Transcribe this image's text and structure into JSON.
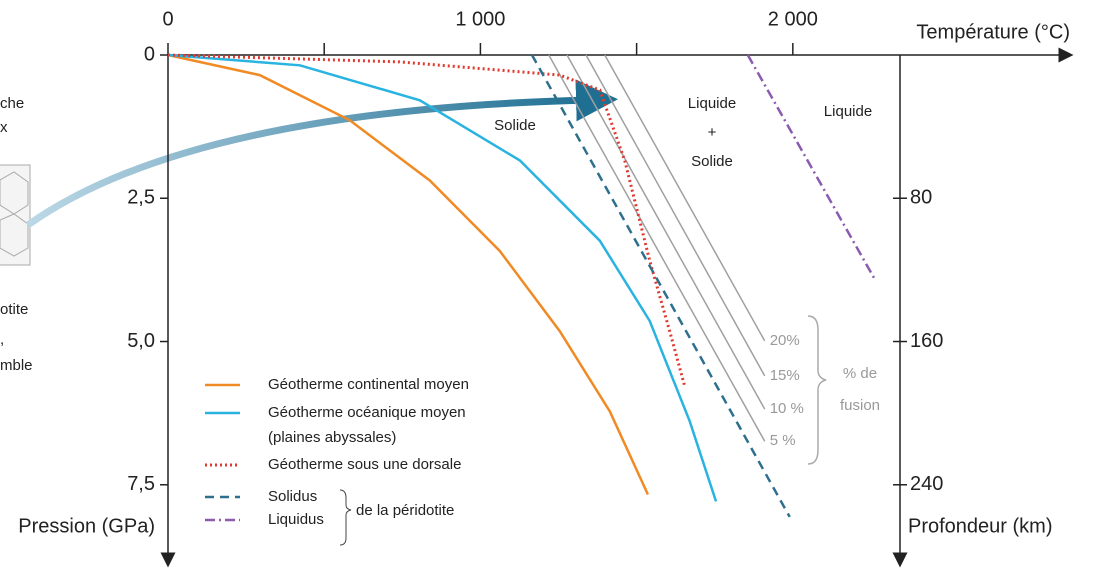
{
  "chart_data": {
    "type": "line",
    "x_label": "Température (°C)",
    "y_label": "Pression (GPa)",
    "y2_label": "Profondeur (km)",
    "xlim": [
      0,
      2900
    ],
    "xticks": [
      0,
      {
        "value": 1000,
        "label": "1 000"
      },
      {
        "value": 2000,
        "label": "2 000"
      }
    ],
    "xminorticks": [
      500,
      1500
    ],
    "ylim": [
      0,
      8.9
    ],
    "y_inverted": true,
    "yticks": [
      0,
      {
        "value": 2.5,
        "label": "2,5"
      },
      {
        "value": 5,
        "label": "5,0"
      },
      {
        "value": 7.5,
        "label": "7,5"
      }
    ],
    "y2lim": [
      0,
      284.8
    ],
    "y2ticks": [
      80,
      160,
      240
    ],
    "series": [
      {
        "name": "Géotherme continental moyen",
        "color": "#f08a24",
        "style": "solid",
        "x": [
          0,
          294,
          582,
          838,
          1062,
          1254,
          1414,
          1536
        ],
        "values": [
          0,
          0.35,
          1.14,
          2.19,
          3.42,
          4.82,
          6.22,
          7.67
        ]
      },
      {
        "name": "Géotherme océanique moyen",
        "color": "#29b3e0",
        "style": "solid",
        "x": [
          0,
          422,
          806,
          1126,
          1382,
          1542,
          1670,
          1754
        ],
        "values": [
          0,
          0.18,
          0.79,
          1.84,
          3.24,
          4.64,
          6.39,
          7.79
        ]
      },
      {
        "name": "Géotherme sous une dorsale",
        "color": "#e03a2e",
        "style": "dotted",
        "x": [
          0,
          742,
          1254,
          1382,
          1462,
          1542,
          1606,
          1654
        ],
        "values": [
          0,
          0.12,
          0.35,
          0.61,
          1.84,
          3.59,
          4.82,
          5.78
        ]
      },
      {
        "name": "Solidus",
        "color": "#2e6f8e",
        "style": "dashed",
        "x": [
          1165,
          1990
        ],
        "values": [
          0,
          8.06
        ]
      },
      {
        "name": "Liquidus",
        "color": "#8a5bb0",
        "style": "dashdot",
        "x": [
          1856,
          2262
        ],
        "values": [
          0,
          3.91
        ]
      }
    ],
    "legend_note": "(plaines abyssales)",
    "legend_group_label": "de la péridotite",
    "fusion_lines": {
      "label": [
        "% de",
        "fusion"
      ],
      "color": "#a0a0a0",
      "lines": [
        {
          "name": "20%",
          "x": [
            1398,
            1910
          ],
          "values": [
            0,
            4.99
          ]
        },
        {
          "name": "15%",
          "x": [
            1338,
            1910
          ],
          "values": [
            0,
            5.6
          ]
        },
        {
          "name": "10 %",
          "x": [
            1277,
            1910
          ],
          "values": [
            0,
            6.18
          ]
        },
        {
          "name": "5 %",
          "x": [
            1219,
            1910
          ],
          "values": [
            0,
            6.74
          ]
        }
      ]
    },
    "region_labels": {
      "solid": "Solide",
      "mixed": [
        "Liquide",
        "+",
        "Solide"
      ],
      "liquid": "Liquide"
    },
    "cropped_labels": [
      "che",
      "x",
      "otite",
      ",",
      "mble"
    ]
  }
}
